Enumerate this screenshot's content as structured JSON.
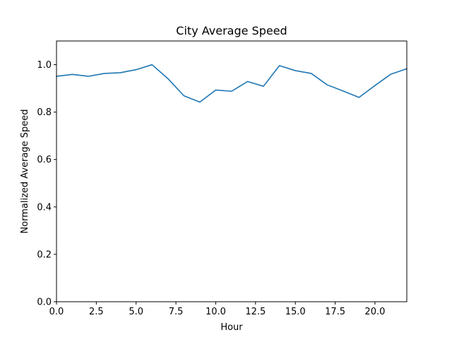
{
  "chart_data": {
    "type": "line",
    "title": "City Average Speed",
    "xlabel": "Hour",
    "ylabel": "Normalized Average Speed",
    "xlim": [
      0,
      22
    ],
    "ylim": [
      0,
      1.1
    ],
    "x_ticks": [
      "0.0",
      "2.5",
      "5.0",
      "7.5",
      "10.0",
      "12.5",
      "15.0",
      "17.5",
      "20.0"
    ],
    "x_tick_values": [
      0,
      2.5,
      5,
      7.5,
      10,
      12.5,
      15,
      17.5,
      20
    ],
    "y_ticks": [
      "0.0",
      "0.2",
      "0.4",
      "0.6",
      "0.8",
      "1.0"
    ],
    "y_tick_values": [
      0,
      0.2,
      0.4,
      0.6,
      0.8,
      1.0
    ],
    "grid": false,
    "legend": "none",
    "series": [
      {
        "color": "#1f77b4",
        "x": [
          0,
          1,
          2,
          3,
          4,
          5,
          6,
          7,
          8,
          9,
          10,
          11,
          12,
          13,
          14,
          15,
          16,
          17,
          18,
          19,
          20,
          21,
          22
        ],
        "y": [
          0.951,
          0.959,
          0.951,
          0.963,
          0.966,
          0.979,
          1.0,
          0.941,
          0.869,
          0.842,
          0.893,
          0.888,
          0.929,
          0.909,
          0.996,
          0.975,
          0.963,
          0.915,
          0.889,
          0.862,
          0.912,
          0.96,
          0.983
        ]
      }
    ]
  }
}
